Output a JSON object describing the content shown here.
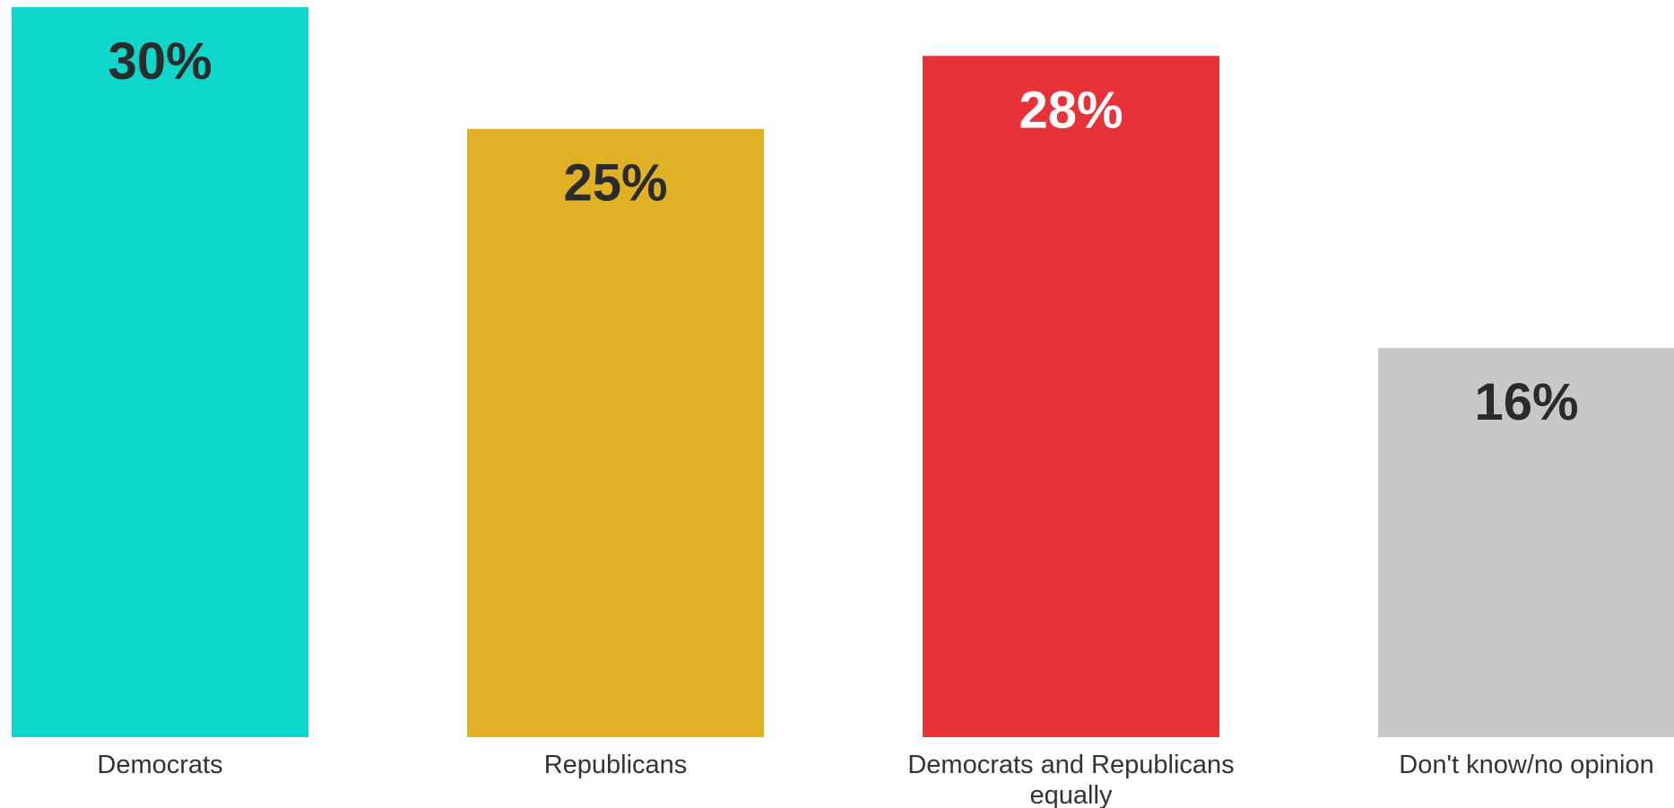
{
  "chart_data": {
    "type": "bar",
    "categories": [
      [
        "Democrats"
      ],
      [
        "Republicans"
      ],
      [
        "Democrats and Republicans",
        "equally"
      ],
      [
        "Don't know/no opinion"
      ]
    ],
    "values": [
      30,
      25,
      28,
      16
    ],
    "value_labels": [
      "30%",
      "25%",
      "28%",
      "16%"
    ],
    "colors": [
      "#0fd6cb",
      "#e0b125",
      "#e83238",
      "#c8c8c8"
    ],
    "label_colors": [
      "#2b2b2b",
      "#2b2b2b",
      "#ffffff",
      "#2b2b2b"
    ],
    "ylim": [
      0,
      30
    ],
    "grid": false,
    "title": "",
    "xlabel": "",
    "ylabel": ""
  }
}
